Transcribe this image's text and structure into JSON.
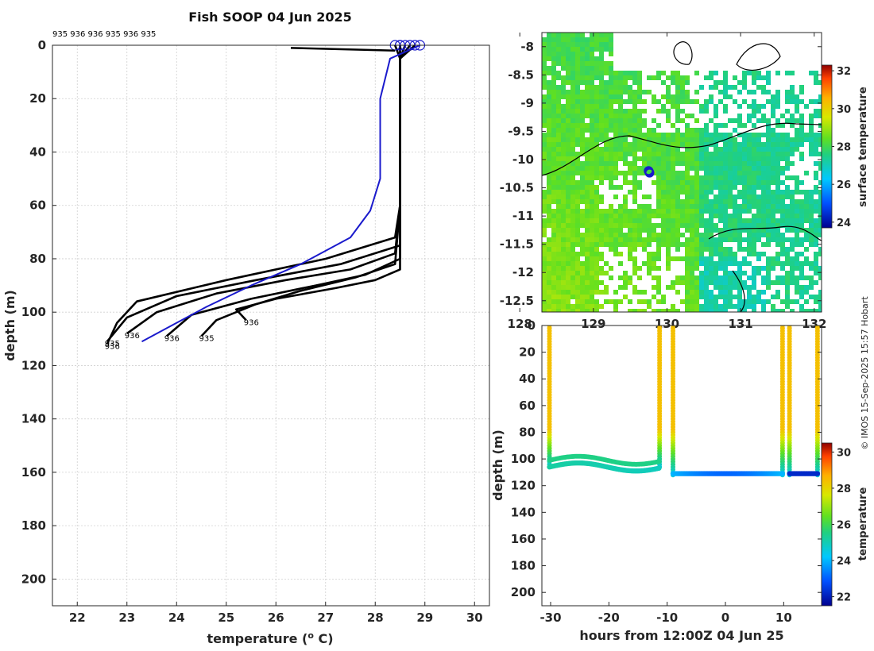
{
  "colors": {
    "profile": "#000000",
    "latest": "#1a1acc",
    "coast": "#000000"
  },
  "chart_data": [
    {
      "type": "line",
      "title": "Fish SOOP 04 Jun 2025",
      "xlabel_main": "temperature (",
      "xlabel_sup": "o",
      "xlabel_end": " C)",
      "ylabel": "depth (m)",
      "xlim": [
        21.5,
        30.3
      ],
      "ylim": [
        210,
        0
      ],
      "xticks": [
        22,
        23,
        24,
        25,
        26,
        27,
        28,
        29,
        30
      ],
      "yticks": [
        0,
        20,
        40,
        60,
        80,
        100,
        120,
        140,
        160,
        180,
        200
      ],
      "grid": true,
      "top_annotation": "935 936 936 935 936 935",
      "series": [
        {
          "name": "profile-1",
          "color": "#000000",
          "temps": [
            28.5,
            28.5,
            28.5,
            28.5,
            28.5,
            28.4,
            27.0,
            25.0,
            23.2,
            22.8,
            22.6
          ],
          "depths": [
            0,
            5,
            20,
            40,
            60,
            72,
            80,
            88,
            96,
            104,
            112
          ]
        },
        {
          "name": "profile-2",
          "color": "#000000",
          "temps": [
            28.6,
            28.5,
            28.5,
            28.5,
            28.5,
            28.5,
            27.3,
            25.6,
            24.0,
            23.0,
            22.6
          ],
          "depths": [
            0,
            5,
            20,
            40,
            60,
            75,
            82,
            88,
            94,
            102,
            111
          ]
        },
        {
          "name": "profile-3",
          "color": "#000000",
          "temps": [
            28.5,
            28.5,
            28.5,
            28.5,
            28.5,
            28.4,
            27.5,
            26.2,
            24.8,
            23.6,
            23.0
          ],
          "depths": [
            0,
            5,
            20,
            40,
            60,
            78,
            84,
            88,
            93,
            100,
            108
          ]
        },
        {
          "name": "profile-4",
          "color": "#000000",
          "temps": [
            28.7,
            28.5,
            28.5,
            28.5,
            28.5,
            28.5,
            27.8,
            26.8,
            25.5,
            24.3,
            23.8
          ],
          "depths": [
            0,
            5,
            20,
            40,
            60,
            80,
            86,
            90,
            95,
            101,
            109
          ]
        },
        {
          "name": "profile-5",
          "color": "#000000",
          "temps": [
            28.4,
            28.5,
            28.5,
            28.5,
            28.5,
            28.4,
            27.6,
            26.5,
            25.6,
            24.8,
            24.5
          ],
          "depths": [
            0,
            5,
            20,
            40,
            60,
            82,
            87,
            92,
            97,
            103,
            109
          ]
        },
        {
          "name": "profile-6",
          "color": "#000000",
          "temps": [
            28.8,
            28.5,
            28.5,
            28.5,
            28.5,
            28.5,
            28.0,
            27.2,
            26.0,
            25.2,
            25.4
          ],
          "depths": [
            0,
            5,
            20,
            40,
            60,
            84,
            88,
            91,
            95,
            99,
            103
          ]
        },
        {
          "name": "latest",
          "color": "#1a1acc",
          "temps": [
            28.9,
            28.3,
            28.1,
            28.1,
            27.9,
            27.5,
            26.5,
            25.5,
            24.6,
            23.8,
            23.3
          ],
          "depths": [
            0,
            5,
            20,
            50,
            62,
            72,
            82,
            90,
            98,
            106,
            111
          ]
        }
      ],
      "surface_line": {
        "temps": [
          26.3,
          28.4
        ],
        "depths": [
          1,
          2
        ]
      },
      "endpoint_labels": [
        "936",
        "935",
        "936",
        "936",
        "935",
        "936"
      ]
    },
    {
      "type": "heatmap",
      "name": "surface-temperature-map",
      "xticks": [
        128,
        129,
        130,
        131,
        132
      ],
      "xlim": [
        128.3,
        132.1
      ],
      "yticks": [
        -8,
        -8.5,
        -9,
        -9.5,
        -10,
        -10.5,
        -11,
        -11.5,
        -12,
        -12.5
      ],
      "ylim": [
        -12.7,
        -7.75
      ],
      "colorbar_label": "surface temperature",
      "colorbar_ticks": [
        24,
        26,
        28,
        30,
        32
      ],
      "colorbar_range": [
        23.7,
        32.3
      ],
      "ship_position": {
        "lon": 129.75,
        "lat": -10.2
      }
    },
    {
      "type": "scatter",
      "name": "depth-time-section",
      "xlabel": "hours from 12:00Z 04 Jun 25",
      "ylabel": "depth (m)",
      "xticks": [
        -30,
        -20,
        -10,
        0,
        10
      ],
      "xlim": [
        -31.5,
        16.5
      ],
      "yticks": [
        0,
        20,
        40,
        60,
        80,
        100,
        120,
        140,
        160,
        180,
        200
      ],
      "ylim": [
        210,
        0
      ],
      "colorbar_label": "temperature",
      "colorbar_ticks": [
        22,
        24,
        26,
        28,
        30
      ],
      "colorbar_range": [
        21.5,
        30.5
      ],
      "casts": [
        {
          "t0": -30.2,
          "t1": -11.3,
          "bottom": 106
        },
        {
          "t0": -9.0,
          "t1": 9.8,
          "bottom": 112
        },
        {
          "t0": 11.0,
          "t1": 15.8,
          "bottom": 112
        }
      ]
    }
  ],
  "credit": "© IMOS 15-Sep-2025 15:57 Hobart"
}
